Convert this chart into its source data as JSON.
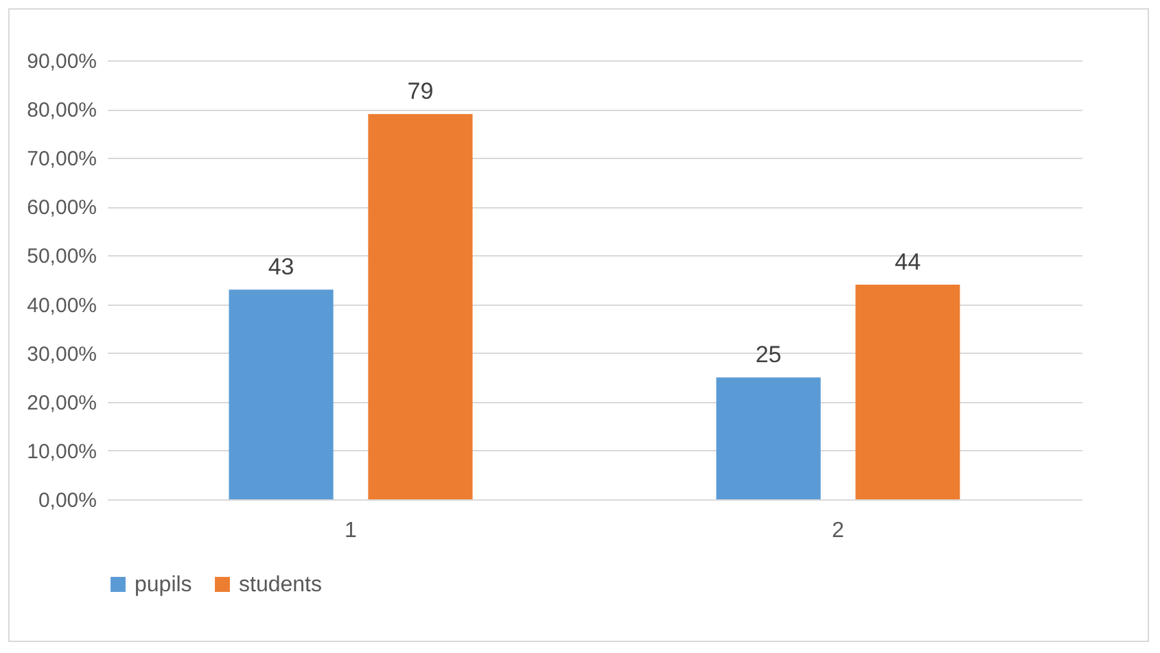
{
  "chart_data": {
    "type": "bar",
    "categories": [
      "1",
      "2"
    ],
    "series": [
      {
        "name": "pupils",
        "color": "#5b9bd5",
        "values": [
          43,
          25
        ]
      },
      {
        "name": "students",
        "color": "#ed7d31",
        "values": [
          79,
          44
        ]
      }
    ],
    "ylim": [
      0,
      90
    ],
    "yticks": [
      {
        "value": 0,
        "label": "0,00%"
      },
      {
        "value": 10,
        "label": "10,00%"
      },
      {
        "value": 20,
        "label": "20,00%"
      },
      {
        "value": 30,
        "label": "30,00%"
      },
      {
        "value": 40,
        "label": "40,00%"
      },
      {
        "value": 50,
        "label": "50,00%"
      },
      {
        "value": 60,
        "label": "60,00%"
      },
      {
        "value": 70,
        "label": "70,00%"
      },
      {
        "value": 80,
        "label": "80,00%"
      },
      {
        "value": 90,
        "label": "90,00%"
      }
    ],
    "grid": "y",
    "legend": "bottom",
    "data_labels": true
  }
}
